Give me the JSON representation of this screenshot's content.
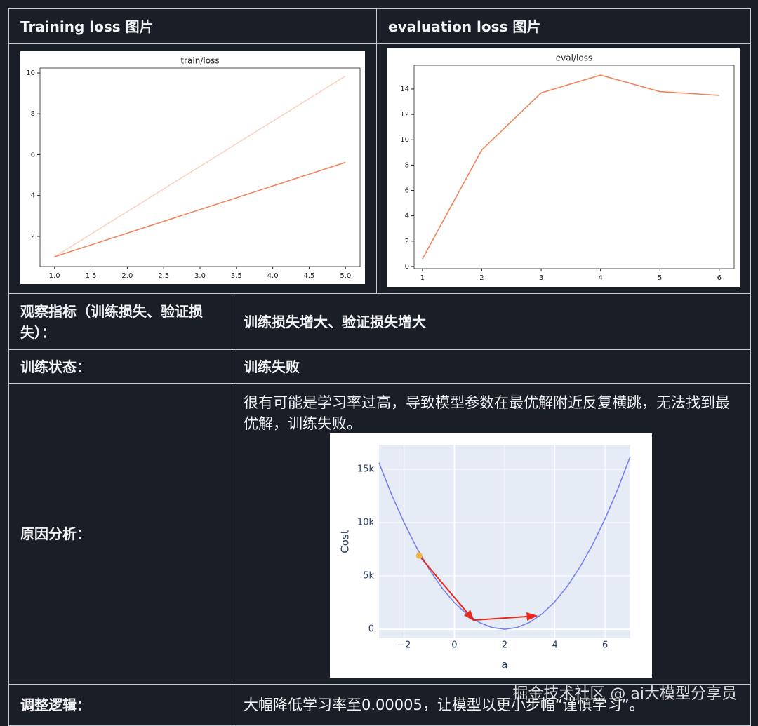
{
  "table": {
    "header": [
      "Training loss 图片",
      "evaluation loss 图片"
    ],
    "rows": [
      [
        "观察指标（训练损失、验证损失）：",
        "训练损失增大、验证损失增大"
      ],
      [
        "训练状态：",
        "训练失败"
      ],
      [
        "原因分析：",
        "很有可能是学习率过高，导致模型参数在最优解附近反复横跳，无法找到最优解，训练失败。"
      ],
      [
        "调整逻辑：",
        "大幅降低学习率至0.00005，让模型以更小步幅“谨慎学习”。"
      ]
    ]
  },
  "watermark": "掘金技术社区 @ ai大模型分享员",
  "chart_data": [
    {
      "type": "line",
      "style": "matplotlib",
      "title": "train/loss",
      "x": [
        1,
        5
      ],
      "series": [
        {
          "color": "#fbd3c4",
          "values": [
            1,
            9.85
          ]
        },
        {
          "color": "#f0845e",
          "values": [
            1,
            5.62
          ]
        }
      ],
      "xlim": [
        0.8,
        5.2
      ],
      "ylim": [
        0.52,
        10.24
      ],
      "xticks": [
        {
          "value": 1,
          "label": "1.0"
        },
        1.5,
        {
          "value": 2,
          "label": "2.0"
        },
        2.5,
        {
          "value": 3,
          "label": "3.0"
        },
        3.5,
        {
          "value": 4,
          "label": "4.0"
        },
        4.5,
        {
          "value": 5,
          "label": "5.0"
        }
      ],
      "yticks": [
        2,
        4,
        6,
        8,
        10
      ]
    },
    {
      "type": "line",
      "style": "matplotlib",
      "title": "eval/loss",
      "x": [
        1,
        2,
        3,
        4,
        5,
        6
      ],
      "series": [
        {
          "color": "#f0845e",
          "values": [
            0.6,
            9.2,
            13.7,
            15.1,
            13.8,
            13.5
          ]
        }
      ],
      "xlim": [
        0.86,
        6.25
      ],
      "ylim": [
        -0.17,
        15.88
      ],
      "xticks": [
        1,
        2,
        3,
        4,
        5,
        6
      ],
      "yticks": [
        0,
        2,
        4,
        6,
        8,
        10,
        12,
        14
      ]
    },
    {
      "type": "line",
      "style": "plotly",
      "plot_background": "#e5ecf6",
      "grid": true,
      "xlabel": "a",
      "ylabel": "Cost",
      "x": [
        -3,
        -2.5,
        -2,
        -1.5,
        -1,
        -0.5,
        0,
        0.5,
        1,
        1.5,
        2,
        2.5,
        3,
        3.5,
        4,
        4.5,
        5,
        5.5,
        6,
        6.5,
        7
      ],
      "series": [
        {
          "color": "#7880ec",
          "values": [
            15600,
            12636,
            9984,
            7644,
            5616,
            3900,
            2496,
            1404,
            624,
            156,
            0,
            162,
            648,
            1458,
            2592,
            4050,
            5832,
            7938,
            10368,
            13122,
            16200
          ]
        }
      ],
      "markers": {
        "color": "#f2b441",
        "x": [
          -1.4
        ],
        "y": [
          6900
        ]
      },
      "arrows": {
        "color": "#e8291c",
        "items": [
          {
            "x": [
              -1.4,
              0.76
            ],
            "y": [
              6900,
              855
            ]
          },
          {
            "x": [
              0.76,
              3.27
            ],
            "y": [
              855,
              1250
            ]
          }
        ]
      },
      "xlim": [
        -3,
        7
      ],
      "ylim": [
        -850,
        17300
      ],
      "xticks": [
        {
          "value": -2,
          "label": "−2"
        },
        0,
        2,
        4,
        6
      ],
      "yticks": [
        0,
        {
          "value": 5000,
          "label": "5k"
        },
        {
          "value": 10000,
          "label": "10k"
        },
        {
          "value": 15000,
          "label": "15k"
        }
      ]
    }
  ]
}
